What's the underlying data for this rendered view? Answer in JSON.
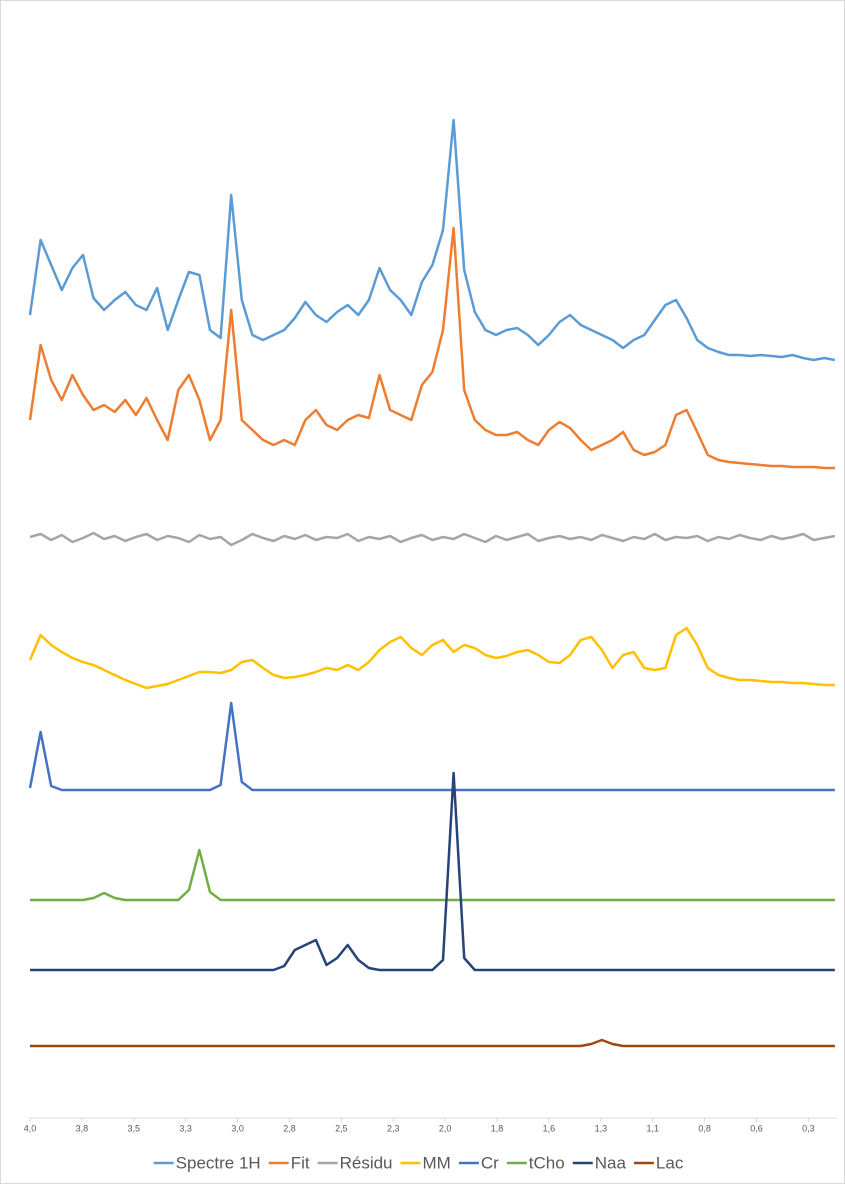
{
  "chart_data": {
    "type": "line",
    "x": [
      4.0,
      3.95,
      3.9,
      3.85,
      3.8,
      3.75,
      3.7,
      3.65,
      3.6,
      3.55,
      3.5,
      3.45,
      3.4,
      3.35,
      3.3,
      3.25,
      3.2,
      3.15,
      3.1,
      3.05,
      3.0,
      2.95,
      2.9,
      2.85,
      2.8,
      2.75,
      2.7,
      2.65,
      2.6,
      2.55,
      2.5,
      2.45,
      2.4,
      2.35,
      2.3,
      2.25,
      2.2,
      2.15,
      2.1,
      2.05,
      2.0,
      1.95,
      1.9,
      1.85,
      1.8,
      1.75,
      1.7,
      1.65,
      1.6,
      1.55,
      1.5,
      1.45,
      1.4,
      1.35,
      1.3,
      1.25,
      1.2,
      1.15,
      1.1,
      1.05,
      1.0,
      0.95,
      0.9,
      0.85,
      0.8,
      0.75,
      0.7,
      0.65,
      0.6,
      0.55,
      0.5,
      0.45,
      0.4,
      0.35,
      0.3,
      0.25,
      0.2
    ],
    "xlim": [
      4.0,
      0.19
    ],
    "xticks": [
      {
        "value": 4.0,
        "label": "4,0"
      },
      {
        "value": 3.755,
        "label": "3,8"
      },
      {
        "value": 3.51,
        "label": "3,5"
      },
      {
        "value": 3.265,
        "label": "3,3"
      },
      {
        "value": 3.02,
        "label": "3,0"
      },
      {
        "value": 2.775,
        "label": "2,8"
      },
      {
        "value": 2.53,
        "label": "2,5"
      },
      {
        "value": 2.285,
        "label": "2,3"
      },
      {
        "value": 2.04,
        "label": "2,0"
      },
      {
        "value": 1.795,
        "label": "1,8"
      },
      {
        "value": 1.55,
        "label": "1,6"
      },
      {
        "value": 1.305,
        "label": "1,3"
      },
      {
        "value": 1.06,
        "label": "1,1"
      },
      {
        "value": 0.815,
        "label": "0,8"
      },
      {
        "value": 0.57,
        "label": "0,6"
      },
      {
        "value": 0.325,
        "label": "0,3"
      }
    ],
    "ylim": [
      0,
      1000
    ],
    "legend": "bottom",
    "series": [
      {
        "name": "Spectre 1H",
        "color": "#5b9bd5",
        "values": [
          785,
          860,
          835,
          810,
          832,
          845,
          802,
          790,
          800,
          808,
          795,
          790,
          812,
          770,
          800,
          828,
          825,
          770,
          762,
          905,
          800,
          765,
          760,
          765,
          770,
          782,
          798,
          785,
          778,
          788,
          795,
          785,
          800,
          832,
          810,
          800,
          785,
          818,
          835,
          870,
          980,
          830,
          788,
          770,
          765,
          770,
          772,
          765,
          755,
          765,
          778,
          785,
          775,
          770,
          765,
          760,
          752,
          760,
          765,
          780,
          795,
          800,
          782,
          760,
          752,
          748,
          745,
          745,
          744,
          745,
          744,
          743,
          745,
          742,
          740,
          742,
          740
        ]
      },
      {
        "name": "Fit",
        "color": "#ed7d31",
        "values": [
          680,
          755,
          720,
          700,
          725,
          705,
          690,
          695,
          688,
          700,
          685,
          702,
          680,
          660,
          710,
          725,
          700,
          660,
          680,
          790,
          680,
          670,
          660,
          655,
          660,
          655,
          680,
          690,
          675,
          670,
          680,
          685,
          682,
          725,
          690,
          685,
          680,
          715,
          728,
          770,
          872,
          710,
          680,
          670,
          665,
          665,
          668,
          660,
          655,
          670,
          678,
          672,
          660,
          650,
          655,
          660,
          668,
          650,
          645,
          648,
          655,
          685,
          690,
          668,
          645,
          640,
          638,
          637,
          636,
          635,
          634,
          634,
          633,
          633,
          633,
          632,
          632
        ]
      },
      {
        "name": "Résidu",
        "color": "#a5a5a5",
        "values": [
          563,
          566,
          560,
          565,
          558,
          562,
          567,
          561,
          564,
          559,
          563,
          566,
          560,
          564,
          562,
          558,
          565,
          561,
          563,
          555,
          560,
          566,
          562,
          559,
          564,
          561,
          565,
          560,
          563,
          562,
          566,
          559,
          563,
          561,
          564,
          558,
          562,
          565,
          560,
          563,
          561,
          566,
          562,
          558,
          564,
          560,
          563,
          566,
          559,
          562,
          564,
          561,
          563,
          560,
          565,
          562,
          559,
          563,
          561,
          566,
          560,
          563,
          562,
          564,
          559,
          563,
          561,
          565,
          562,
          560,
          564,
          561,
          563,
          566,
          560,
          562,
          564
        ]
      },
      {
        "name": "MM",
        "color": "#ffc000",
        "values": [
          440,
          465,
          455,
          448,
          442,
          438,
          435,
          430,
          425,
          420,
          416,
          412,
          414,
          416,
          420,
          424,
          428,
          428,
          427,
          430,
          438,
          440,
          432,
          425,
          422,
          423,
          425,
          428,
          432,
          430,
          435,
          430,
          438,
          450,
          458,
          463,
          452,
          445,
          455,
          460,
          448,
          455,
          452,
          445,
          442,
          444,
          448,
          450,
          445,
          438,
          437,
          445,
          460,
          463,
          450,
          432,
          445,
          448,
          432,
          430,
          432,
          465,
          472,
          455,
          432,
          425,
          422,
          420,
          420,
          419,
          418,
          418,
          417,
          417,
          416,
          415,
          415
        ]
      },
      {
        "name": "Cr",
        "color": "#4472c4",
        "values": [
          312,
          368,
          314,
          310,
          310,
          310,
          310,
          310,
          310,
          310,
          310,
          310,
          310,
          310,
          310,
          310,
          310,
          310,
          315,
          397,
          318,
          310,
          310,
          310,
          310,
          310,
          310,
          310,
          310,
          310,
          310,
          310,
          310,
          310,
          310,
          310,
          310,
          310,
          310,
          310,
          310,
          310,
          310,
          310,
          310,
          310,
          310,
          310,
          310,
          310,
          310,
          310,
          310,
          310,
          310,
          310,
          310,
          310,
          310,
          310,
          310,
          310,
          310,
          310,
          310,
          310,
          310,
          310,
          310,
          310,
          310,
          310,
          310,
          310,
          310,
          310,
          310
        ]
      },
      {
        "name": "tCho",
        "color": "#70ad47",
        "values": [
          200,
          200,
          200,
          200,
          200,
          200,
          202,
          207,
          202,
          200,
          200,
          200,
          200,
          200,
          200,
          210,
          250,
          208,
          200,
          200,
          200,
          200,
          200,
          200,
          200,
          200,
          200,
          200,
          200,
          200,
          200,
          200,
          200,
          200,
          200,
          200,
          200,
          200,
          200,
          200,
          200,
          200,
          200,
          200,
          200,
          200,
          200,
          200,
          200,
          200,
          200,
          200,
          200,
          200,
          200,
          200,
          200,
          200,
          200,
          200,
          200,
          200,
          200,
          200,
          200,
          200,
          200,
          200,
          200,
          200,
          200,
          200,
          200,
          200,
          200,
          200,
          200
        ]
      },
      {
        "name": "Naa",
        "color": "#264478",
        "values": [
          130,
          130,
          130,
          130,
          130,
          130,
          130,
          130,
          130,
          130,
          130,
          130,
          130,
          130,
          130,
          130,
          130,
          130,
          130,
          130,
          130,
          130,
          130,
          130,
          134,
          150,
          155,
          160,
          135,
          142,
          155,
          140,
          132,
          130,
          130,
          130,
          130,
          130,
          130,
          140,
          327,
          142,
          130,
          130,
          130,
          130,
          130,
          130,
          130,
          130,
          130,
          130,
          130,
          130,
          130,
          130,
          130,
          130,
          130,
          130,
          130,
          130,
          130,
          130,
          130,
          130,
          130,
          130,
          130,
          130,
          130,
          130,
          130,
          130,
          130,
          130,
          130
        ]
      },
      {
        "name": "Lac",
        "color": "#9e480e",
        "values": [
          54,
          54,
          54,
          54,
          54,
          54,
          54,
          54,
          54,
          54,
          54,
          54,
          54,
          54,
          54,
          54,
          54,
          54,
          54,
          54,
          54,
          54,
          54,
          54,
          54,
          54,
          54,
          54,
          54,
          54,
          54,
          54,
          54,
          54,
          54,
          54,
          54,
          54,
          54,
          54,
          54,
          54,
          54,
          54,
          54,
          54,
          54,
          54,
          54,
          54,
          54,
          54,
          54,
          56,
          60,
          56,
          54,
          54,
          54,
          54,
          54,
          54,
          54,
          54,
          54,
          54,
          54,
          54,
          54,
          54,
          54,
          54,
          54,
          54,
          54,
          54,
          54
        ]
      }
    ]
  }
}
